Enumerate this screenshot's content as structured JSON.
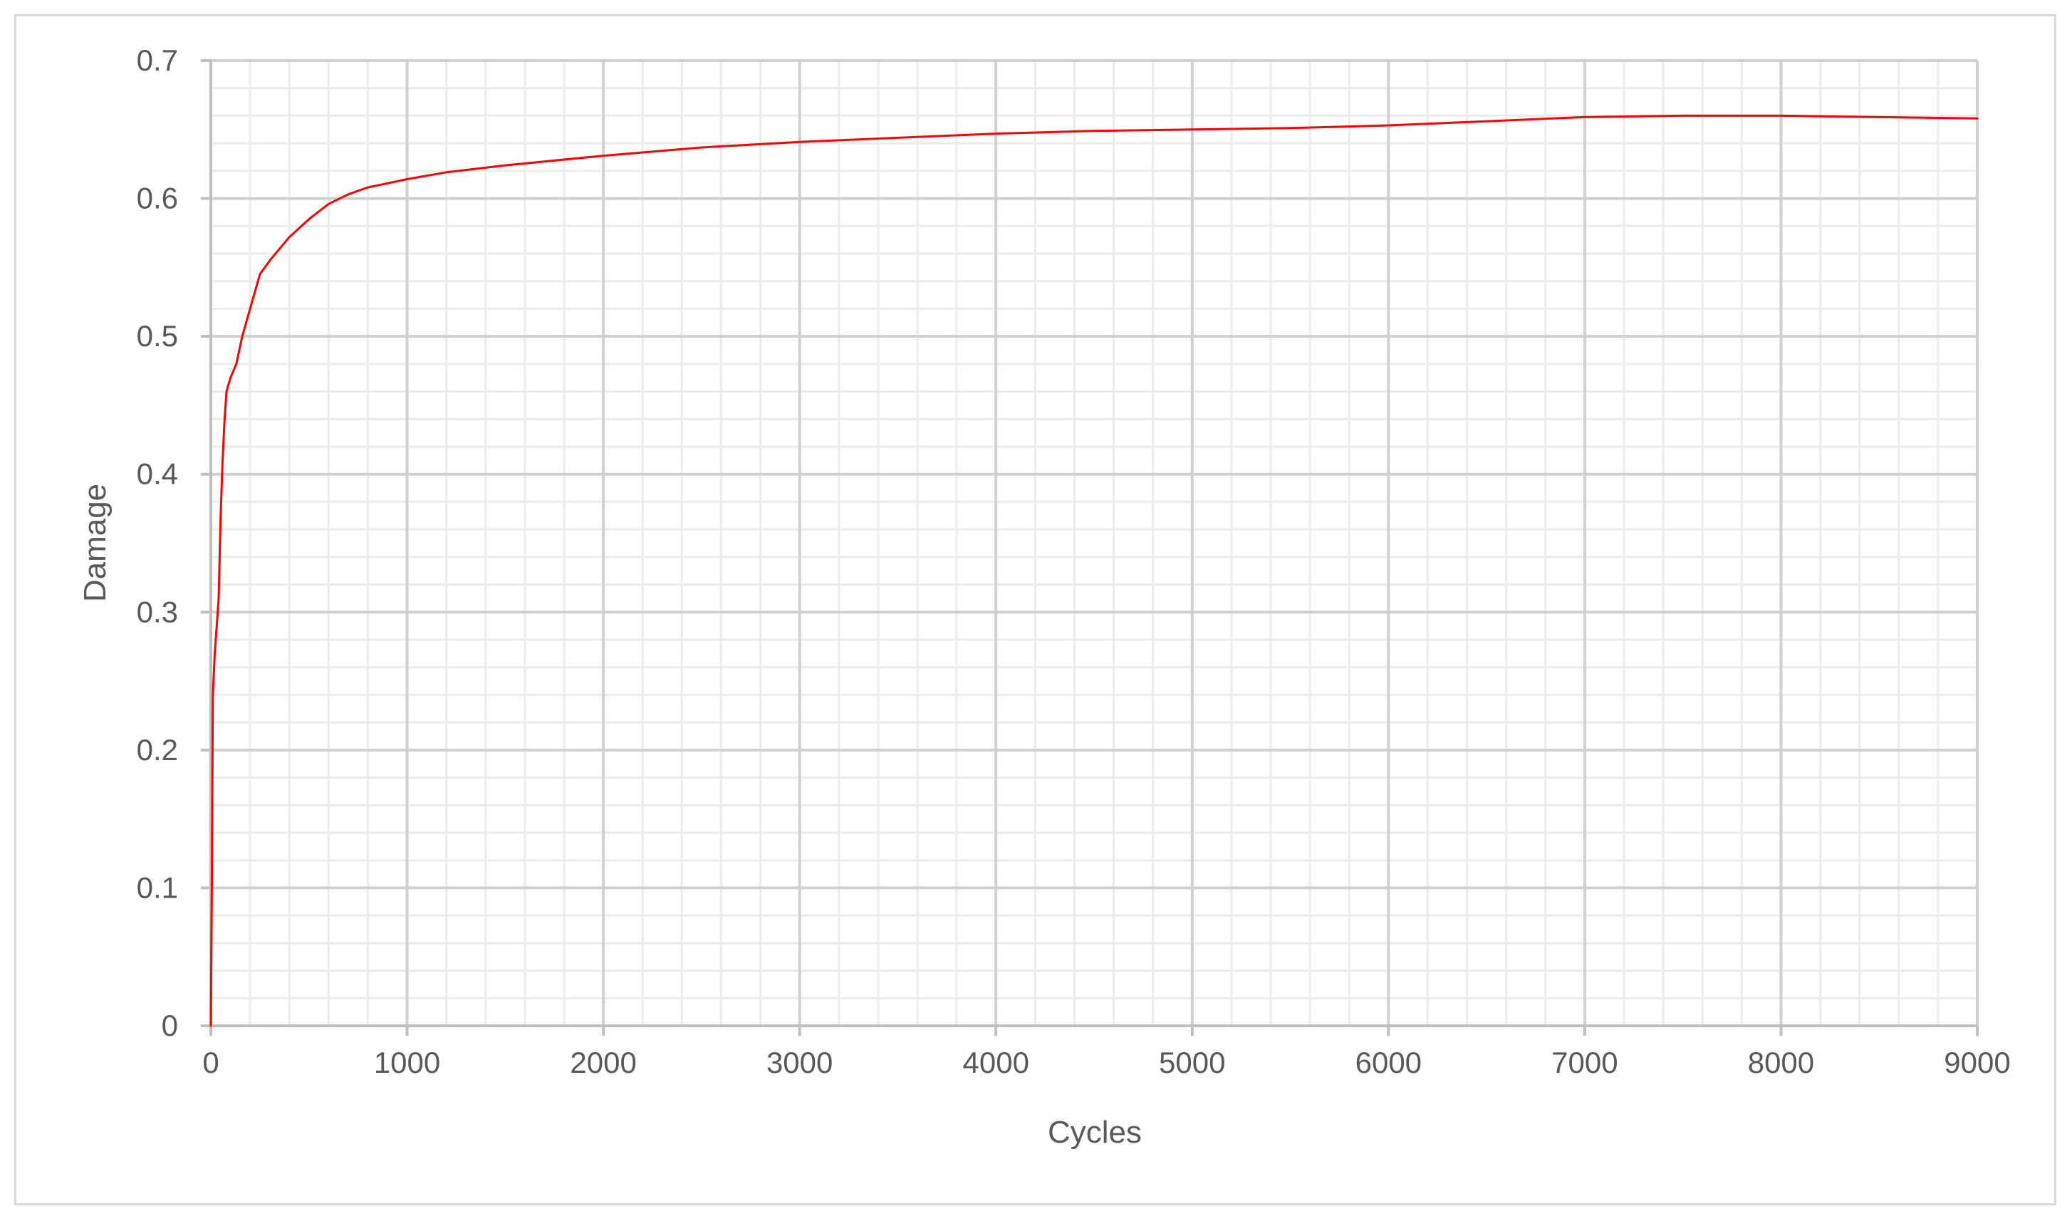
{
  "chart_data": {
    "type": "line",
    "xlabel": "Cycles",
    "ylabel": "Damage",
    "xlim": [
      0,
      9000
    ],
    "ylim": [
      0,
      0.7
    ],
    "xticks": [
      "0",
      "1000",
      "2000",
      "3000",
      "4000",
      "5000",
      "6000",
      "7000",
      "8000",
      "9000"
    ],
    "yticks": [
      "0",
      "0.1",
      "0.2",
      "0.3",
      "0.4",
      "0.5",
      "0.6",
      "0.7"
    ],
    "grid": true,
    "minor_grid": true,
    "legend": "none",
    "line_color": "#ff0000",
    "series": [
      {
        "x": [
          0,
          5,
          10,
          20,
          30,
          40,
          50,
          60,
          70,
          80,
          100,
          130,
          160,
          200,
          250,
          300,
          400,
          500,
          600,
          700,
          800,
          1000,
          1200,
          1500,
          2000,
          2500,
          3000,
          3500,
          4000,
          4500,
          5000,
          5500,
          6000,
          6500,
          7000,
          7500,
          8000,
          8500,
          9000
        ],
        "y": [
          0,
          0.1,
          0.24,
          0.27,
          0.29,
          0.31,
          0.37,
          0.41,
          0.44,
          0.46,
          0.47,
          0.48,
          0.5,
          0.52,
          0.545,
          0.555,
          0.572,
          0.585,
          0.596,
          0.603,
          0.608,
          0.614,
          0.619,
          0.624,
          0.631,
          0.637,
          0.641,
          0.644,
          0.647,
          0.649,
          0.65,
          0.651,
          0.653,
          0.656,
          0.659,
          0.66,
          0.66,
          0.659,
          0.658
        ]
      }
    ]
  }
}
